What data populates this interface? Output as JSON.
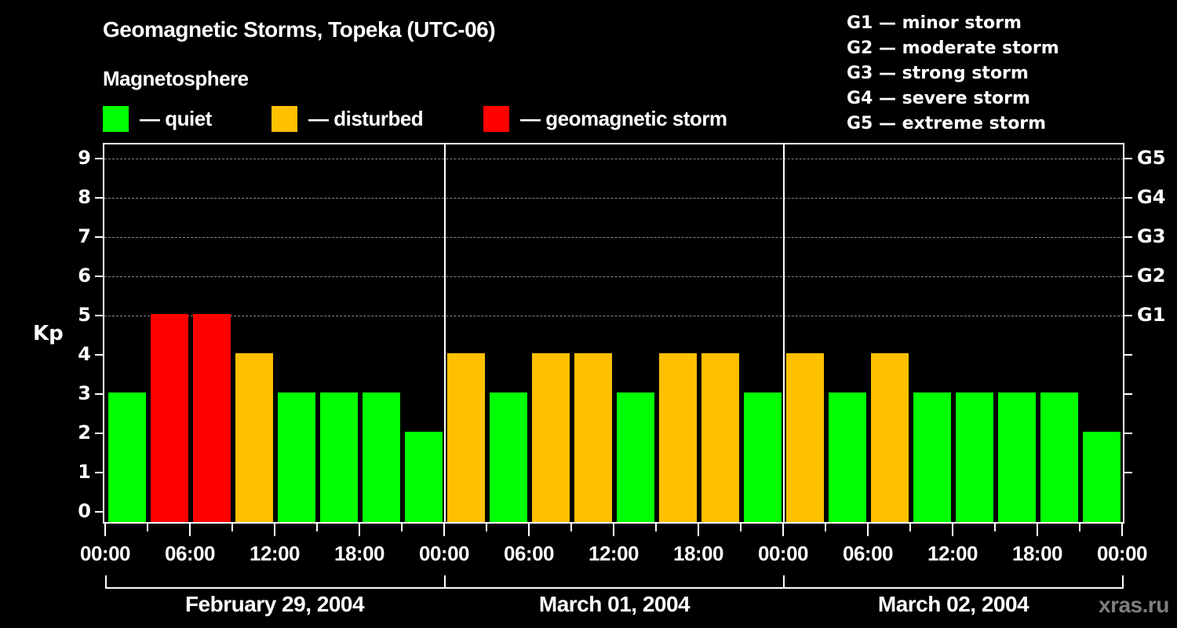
{
  "header": {
    "title": "Geomagnetic Storms, Topeka (UTC-06)",
    "subtitle": "Magnetosphere",
    "legend": [
      {
        "label": "— quiet",
        "color": "#00ff00"
      },
      {
        "label": "— disturbed",
        "color": "#ffc000"
      },
      {
        "label": "— geomagnetic storm",
        "color": "#ff0000"
      }
    ],
    "g_scale": [
      "G1 — minor storm",
      "G2 — moderate storm",
      "G3 — strong storm",
      "G4 — severe storm",
      "G5 — extreme storm"
    ]
  },
  "axes": {
    "y_label": "Kp",
    "y_ticks": [
      "0",
      "1",
      "2",
      "3",
      "4",
      "5",
      "6",
      "7",
      "8",
      "9"
    ],
    "right_ticks": [
      {
        "kp": 5,
        "label": "G1"
      },
      {
        "kp": 6,
        "label": "G2"
      },
      {
        "kp": 7,
        "label": "G3"
      },
      {
        "kp": 8,
        "label": "G4"
      },
      {
        "kp": 9,
        "label": "G5"
      }
    ],
    "x_ticks": [
      "00:00",
      "06:00",
      "12:00",
      "18:00",
      "00:00",
      "06:00",
      "12:00",
      "18:00",
      "00:00",
      "06:00",
      "12:00",
      "18:00",
      "00:00"
    ],
    "days": [
      "February 29, 2004",
      "March 01, 2004",
      "March 02, 2004"
    ]
  },
  "watermark": "xras.ru",
  "colors": {
    "quiet": "#00ff00",
    "disturbed": "#ffc000",
    "storm": "#ff0000",
    "background": "#000000"
  },
  "chart_data": {
    "type": "bar",
    "title": "Geomagnetic Storms, Topeka (UTC-06)",
    "xlabel": "",
    "ylabel": "Kp",
    "ylim": [
      0,
      9
    ],
    "grid": "dashed horizontal at Kp 5-9",
    "categories": [
      "Feb 29 00:00",
      "Feb 29 03:00",
      "Feb 29 06:00",
      "Feb 29 09:00",
      "Feb 29 12:00",
      "Feb 29 15:00",
      "Feb 29 18:00",
      "Feb 29 21:00",
      "Mar 01 00:00",
      "Mar 01 03:00",
      "Mar 01 06:00",
      "Mar 01 09:00",
      "Mar 01 12:00",
      "Mar 01 15:00",
      "Mar 01 18:00",
      "Mar 01 21:00",
      "Mar 02 00:00",
      "Mar 02 03:00",
      "Mar 02 06:00",
      "Mar 02 09:00",
      "Mar 02 12:00",
      "Mar 02 15:00",
      "Mar 02 18:00",
      "Mar 02 21:00"
    ],
    "values": [
      3,
      5,
      5,
      4,
      3,
      3,
      3,
      2,
      4,
      3,
      4,
      4,
      3,
      4,
      4,
      3,
      4,
      3,
      4,
      3,
      3,
      3,
      3,
      2
    ],
    "legend": [
      "quiet (Kp<4)",
      "disturbed (Kp=4)",
      "geomagnetic storm (Kp>=5)"
    ],
    "right_axis": {
      "5": "G1",
      "6": "G2",
      "7": "G3",
      "8": "G4",
      "9": "G5"
    }
  }
}
